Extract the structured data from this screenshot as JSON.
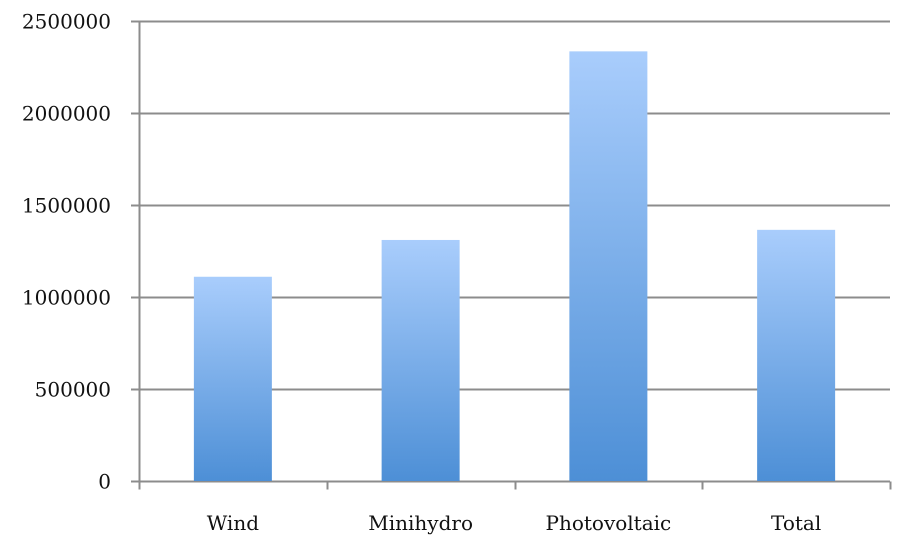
{
  "chart_data": {
    "type": "bar",
    "title": "",
    "xlabel": "",
    "ylabel": "",
    "categories": [
      "Wind",
      "Minihydro",
      "Photovoltaic",
      "Total"
    ],
    "values": [
      1110000,
      1310000,
      2335000,
      1365000
    ],
    "ylim": [
      0,
      2500000
    ],
    "yticks": [
      0,
      500000,
      1000000,
      1500000,
      2000000,
      2500000
    ],
    "ytick_labels": [
      "0",
      "500000",
      "1000000",
      "1500000",
      "2000000",
      "2500000"
    ],
    "grid": true,
    "legend": "none",
    "colors": {
      "bar_top": "#a9cdfc",
      "bar_bottom": "#4d8fd6",
      "grid": "#8c8c8c",
      "axis": "#8c8c8c"
    }
  }
}
